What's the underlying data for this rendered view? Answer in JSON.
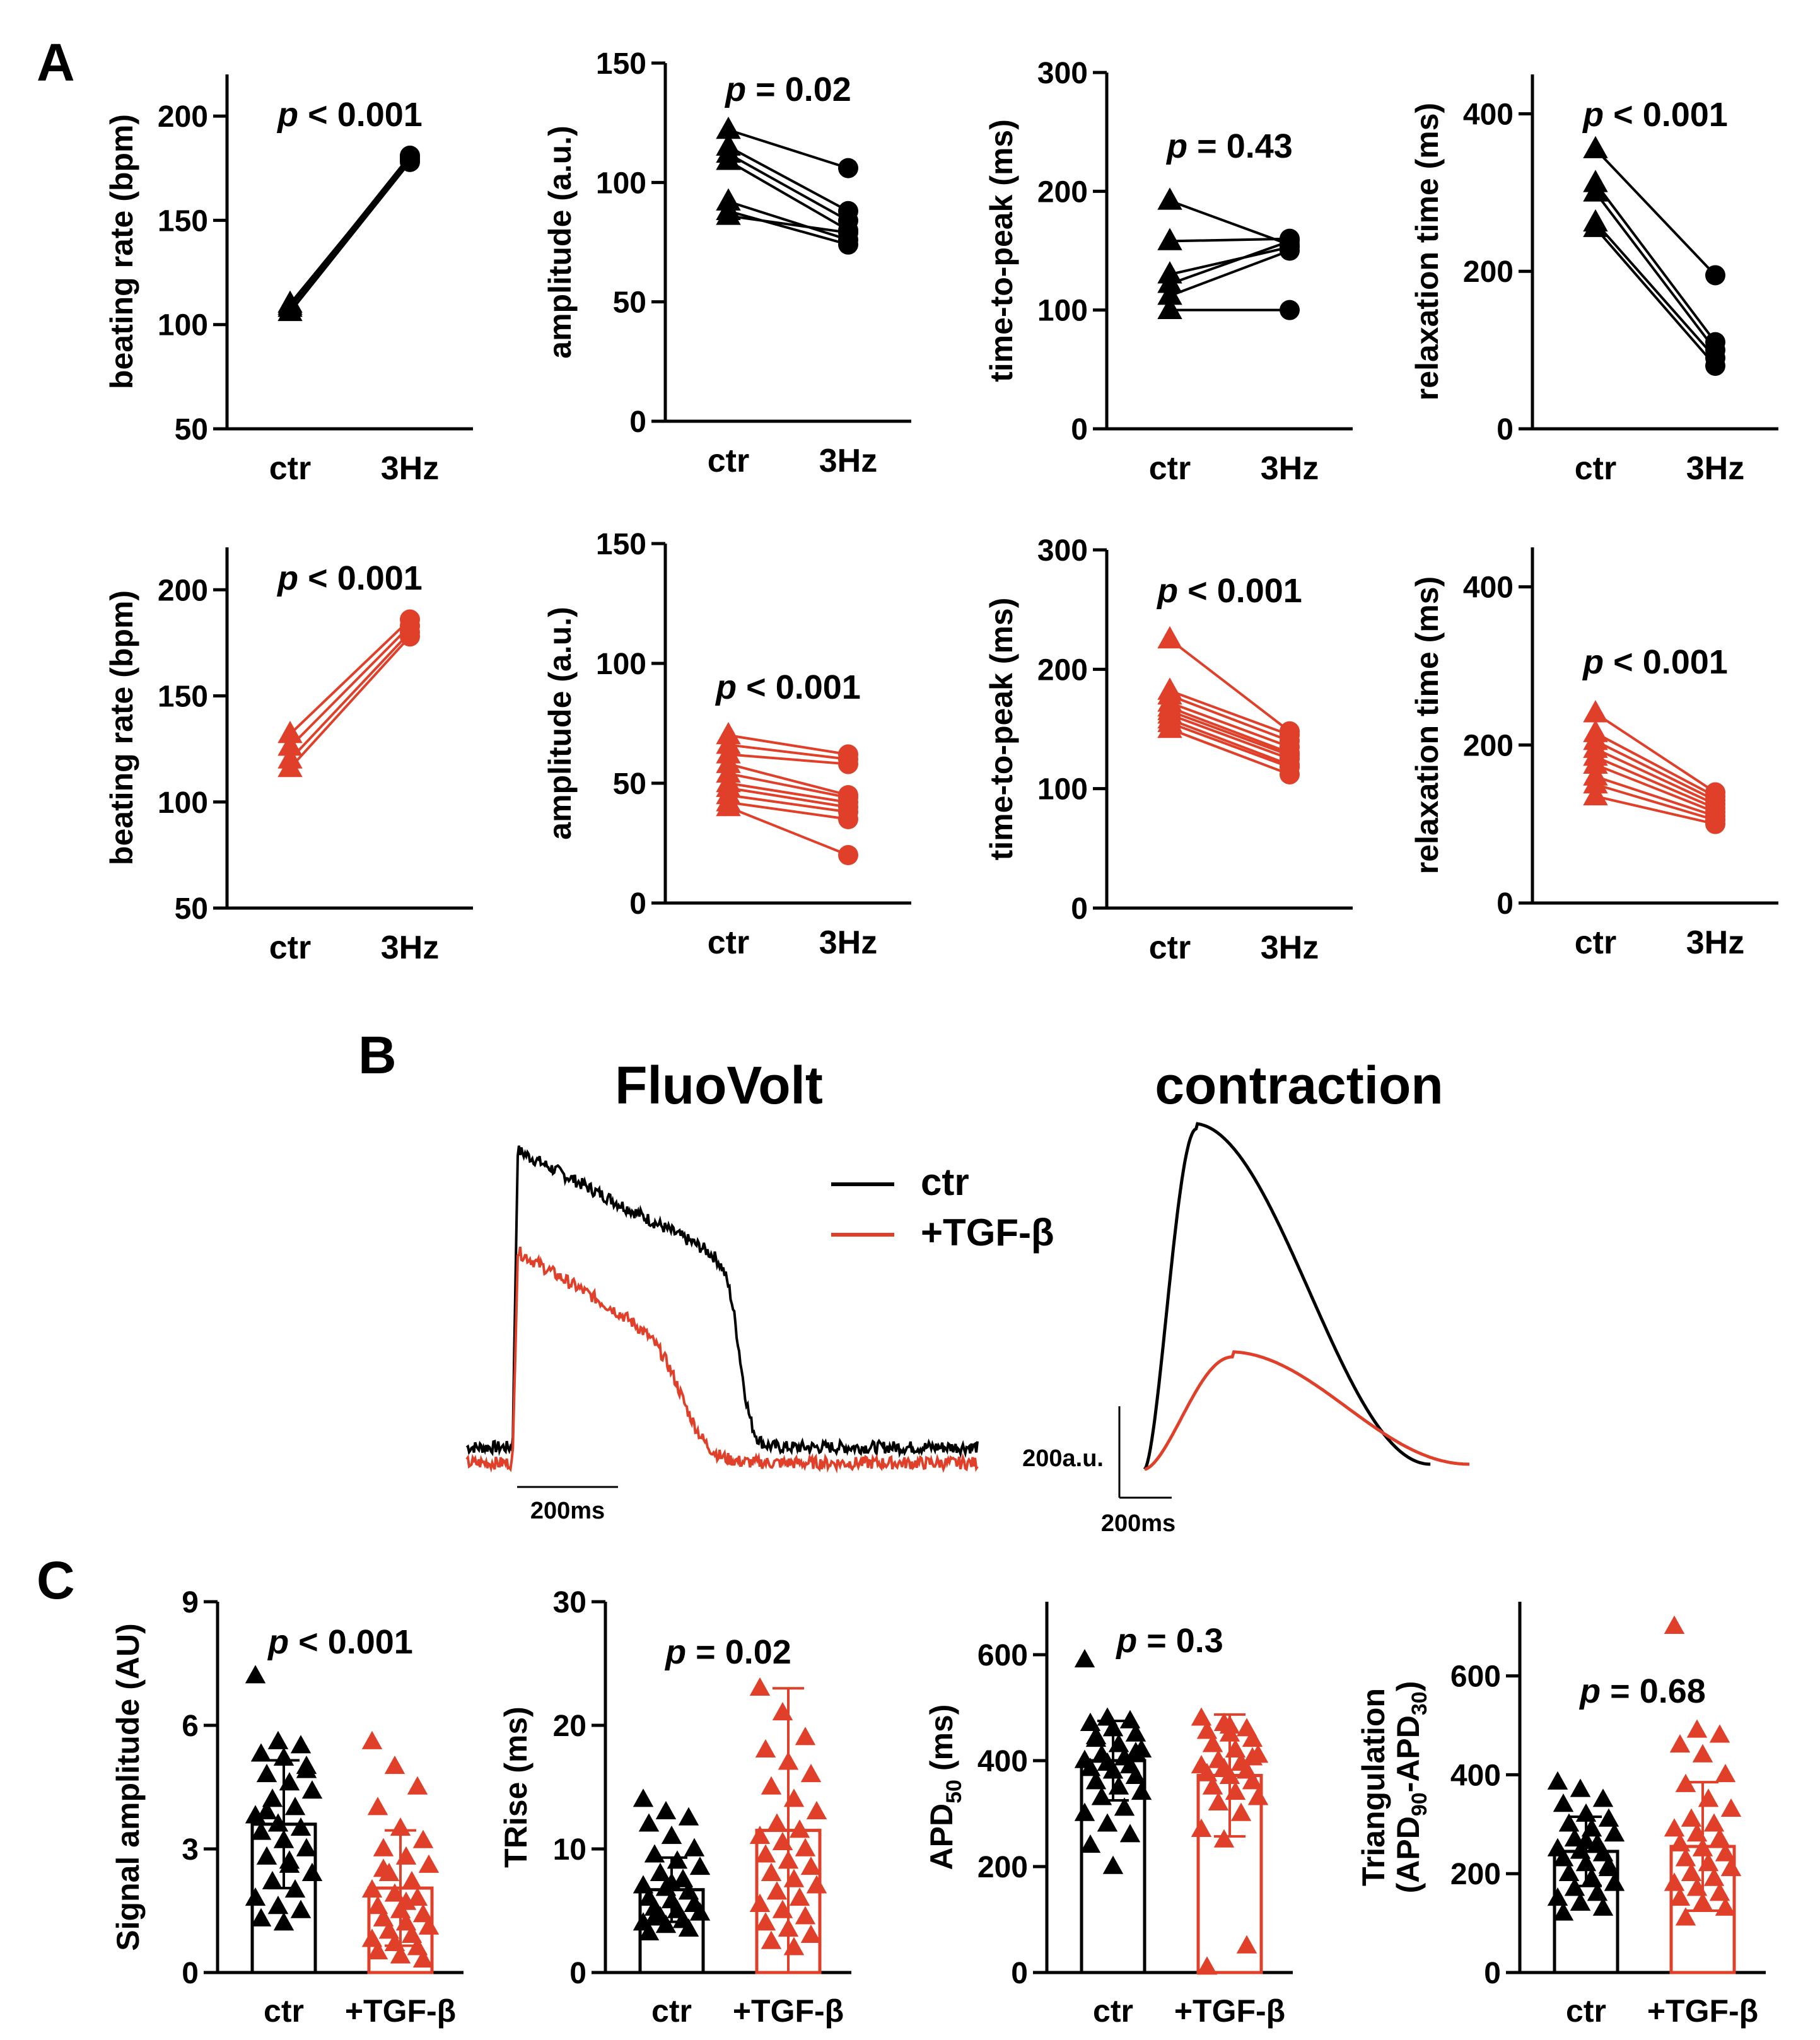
{
  "figure": {
    "panel_labels": [
      "A",
      "B",
      "C"
    ],
    "colors": {
      "control": "#000000",
      "treated": "#e0402a"
    }
  },
  "chart_data": [
    {
      "id": "A1",
      "type": "scatter",
      "paired": true,
      "color": "#000000",
      "marker_ctr": "triangle",
      "marker_3hz": "circle",
      "ylabel": "beating rate (bpm)",
      "ylim": [
        50,
        220
      ],
      "yticks": [
        50,
        100,
        150,
        200
      ],
      "categories": [
        "ctr",
        "3Hz"
      ],
      "pvalue": "< 0.001",
      "pairs": [
        [
          108,
          179
        ],
        [
          110,
          180
        ],
        [
          106,
          178
        ],
        [
          109,
          181
        ]
      ]
    },
    {
      "id": "A2",
      "type": "scatter",
      "paired": true,
      "color": "#000000",
      "marker_ctr": "triangle",
      "marker_3hz": "circle",
      "ylabel": "amplitude (a.u.)",
      "ylim": [
        0,
        150
      ],
      "yticks": [
        0,
        50,
        100,
        150
      ],
      "categories": [
        "ctr",
        "3Hz"
      ],
      "pvalue": "= 0.02",
      "pairs": [
        [
          122,
          106
        ],
        [
          115,
          88
        ],
        [
          112,
          84
        ],
        [
          109,
          80
        ],
        [
          92,
          76
        ],
        [
          88,
          74
        ],
        [
          86,
          79
        ]
      ]
    },
    {
      "id": "A3",
      "type": "scatter",
      "paired": true,
      "color": "#000000",
      "marker_ctr": "triangle",
      "marker_3hz": "circle",
      "ylabel": "time-to-peak (ms)",
      "ylim": [
        0,
        300
      ],
      "yticks": [
        0,
        100,
        200,
        300
      ],
      "categories": [
        "ctr",
        "3Hz"
      ],
      "pvalue": "= 0.43",
      "pairs": [
        [
          192,
          155
        ],
        [
          158,
          160
        ],
        [
          130,
          153
        ],
        [
          122,
          158
        ],
        [
          112,
          150
        ],
        [
          100,
          100
        ]
      ]
    },
    {
      "id": "A4",
      "type": "scatter",
      "paired": true,
      "color": "#000000",
      "marker_ctr": "triangle",
      "marker_3hz": "circle",
      "ylabel": "relaxation time (ms)",
      "ylim": [
        0,
        450
      ],
      "yticks": [
        0,
        200,
        400
      ],
      "categories": [
        "ctr",
        "3Hz"
      ],
      "pvalue": "< 0.001",
      "pairs": [
        [
          355,
          195
        ],
        [
          312,
          110
        ],
        [
          300,
          100
        ],
        [
          262,
          90
        ],
        [
          255,
          80
        ]
      ]
    },
    {
      "id": "A5",
      "type": "scatter",
      "paired": true,
      "color": "#e0402a",
      "marker_ctr": "triangle",
      "marker_3hz": "circle",
      "ylabel": "beating rate (bpm)",
      "ylim": [
        50,
        220
      ],
      "yticks": [
        50,
        100,
        150,
        200
      ],
      "categories": [
        "ctr",
        "3Hz"
      ],
      "pvalue": "< 0.001",
      "pairs": [
        [
          132,
          186
        ],
        [
          126,
          183
        ],
        [
          120,
          180
        ],
        [
          116,
          178
        ]
      ]
    },
    {
      "id": "A6",
      "type": "scatter",
      "paired": true,
      "color": "#e0402a",
      "marker_ctr": "triangle",
      "marker_3hz": "circle",
      "ylabel": "amplitude (a.u.)",
      "ylim": [
        0,
        150
      ],
      "yticks": [
        0,
        50,
        100,
        150
      ],
      "categories": [
        "ctr",
        "3Hz"
      ],
      "pvalue": "< 0.001",
      "pairs": [
        [
          70,
          62
        ],
        [
          66,
          60
        ],
        [
          62,
          58
        ],
        [
          58,
          45
        ],
        [
          54,
          44
        ],
        [
          50,
          42
        ],
        [
          48,
          40
        ],
        [
          45,
          38
        ],
        [
          42,
          35
        ],
        [
          40,
          20
        ]
      ]
    },
    {
      "id": "A7",
      "type": "scatter",
      "paired": true,
      "color": "#e0402a",
      "marker_ctr": "triangle",
      "marker_3hz": "circle",
      "ylabel": "time-to-peak (ms)",
      "ylim": [
        0,
        300
      ],
      "yticks": [
        0,
        100,
        200,
        300
      ],
      "categories": [
        "ctr",
        "3Hz"
      ],
      "pvalue": "< 0.001",
      "pairs": [
        [
          225,
          148
        ],
        [
          182,
          145
        ],
        [
          178,
          140
        ],
        [
          172,
          135
        ],
        [
          168,
          130
        ],
        [
          165,
          128
        ],
        [
          162,
          125
        ],
        [
          158,
          120
        ],
        [
          155,
          118
        ],
        [
          150,
          112
        ]
      ]
    },
    {
      "id": "A8",
      "type": "scatter",
      "paired": true,
      "color": "#e0402a",
      "marker_ctr": "triangle",
      "marker_3hz": "circle",
      "ylabel": "relaxation time (ms)",
      "ylim": [
        0,
        450
      ],
      "yticks": [
        0,
        200,
        400
      ],
      "categories": [
        "ctr",
        "3Hz"
      ],
      "pvalue": "< 0.001",
      "pairs": [
        [
          240,
          140
        ],
        [
          215,
          135
        ],
        [
          205,
          130
        ],
        [
          195,
          125
        ],
        [
          185,
          120
        ],
        [
          175,
          115
        ],
        [
          160,
          110
        ],
        [
          150,
          105
        ],
        [
          135,
          100
        ]
      ]
    },
    {
      "id": "B1",
      "type": "line",
      "title": "FluoVolt",
      "series": [
        {
          "name": "ctr",
          "color": "#000000",
          "baseline": 0.05,
          "peak": 1.0,
          "plateau_end": 0.62,
          "onset": 0.09,
          "repol_mid": 0.535,
          "repol_width": 0.012,
          "noise": 0.02
        },
        {
          "name": "+TGF-β",
          "color": "#e0402a",
          "baseline": 0.0,
          "peak": 0.68,
          "plateau_end": 0.35,
          "onset": 0.09,
          "repol_mid": 0.43,
          "repol_width": 0.025,
          "noise": 0.02
        }
      ],
      "scalebar_x": "200ms"
    },
    {
      "id": "B2",
      "type": "line",
      "title": "contraction",
      "series": [
        {
          "name": "ctr",
          "color": "#000000",
          "peak": 1.0,
          "t_peak": 0.16,
          "t_end": 0.88
        },
        {
          "name": "+TGF-β",
          "color": "#e0402a",
          "peak": 0.33,
          "t_peak": 0.27,
          "t_end": 1.0
        }
      ],
      "scalebar_x": "200ms",
      "scalebar_y": "200a.u."
    },
    {
      "id": "C1",
      "type": "bar",
      "ylabel": "Signal amplitude (AU)",
      "ylim": [
        0,
        9
      ],
      "yticks": [
        0,
        3,
        6,
        9
      ],
      "categories": [
        "ctr",
        "+TGF-β"
      ],
      "pvalue": "< 0.001",
      "means": [
        3.6,
        2.05
      ],
      "sd": [
        1.55,
        1.4
      ],
      "points": [
        [
          7.2,
          5.6,
          5.5,
          5.3,
          5.2,
          5.0,
          4.8,
          4.6,
          4.4,
          4.2,
          4.0,
          3.8,
          3.6,
          3.5,
          3.4,
          3.2,
          3.0,
          2.8,
          2.6,
          2.4,
          2.2,
          2.0,
          1.8,
          1.6,
          1.5,
          1.3,
          1.2,
          4.9,
          3.9,
          2.7
        ],
        [
          5.6,
          5.0,
          4.5,
          4.0,
          3.5,
          3.2,
          3.0,
          2.8,
          2.6,
          2.4,
          2.2,
          2.0,
          1.9,
          1.8,
          1.6,
          1.5,
          1.4,
          1.3,
          1.2,
          1.1,
          1.0,
          0.9,
          0.8,
          0.7,
          0.6,
          0.5,
          0.4,
          0.3,
          2.5,
          1.7
        ]
      ]
    },
    {
      "id": "C2",
      "type": "bar",
      "ylabel": "TRise (ms)",
      "ylim": [
        0,
        30
      ],
      "yticks": [
        0,
        10,
        20,
        30
      ],
      "categories": [
        "ctr",
        "+TGF-β"
      ],
      "pvalue": "= 0.02",
      "means": [
        6.7,
        11.5
      ],
      "sd": [
        2.6,
        11.5
      ],
      "points": [
        [
          14.0,
          13.0,
          12.5,
          12.0,
          11.0,
          10.0,
          9.5,
          9.0,
          8.5,
          8.0,
          7.5,
          7.0,
          6.8,
          6.5,
          6.0,
          5.8,
          5.5,
          5.2,
          5.0,
          4.8,
          4.5,
          4.2,
          4.0,
          3.8,
          3.5,
          3.2,
          7.2,
          5.5,
          4.4
        ],
        [
          23.0,
          21.0,
          19.0,
          18.0,
          17.0,
          16.0,
          15.0,
          14.0,
          13.0,
          12.0,
          11.5,
          11.0,
          10.5,
          10.0,
          9.5,
          9.0,
          8.5,
          8.0,
          7.5,
          7.0,
          6.5,
          6.0,
          5.5,
          5.0,
          4.5,
          4.0,
          3.5,
          3.0,
          2.5,
          2.0
        ]
      ]
    },
    {
      "id": "C3",
      "type": "bar",
      "ylabel": "APD50 (ms)",
      "ylabel_main": "APD",
      "ylabel_sub": "50",
      "ylabel_suffix": " (ms)",
      "ylim": [
        0,
        700
      ],
      "yticks": [
        0,
        200,
        400,
        600
      ],
      "categories": [
        "ctr",
        "+TGF-β"
      ],
      "pvalue": "= 0.3",
      "means": [
        400,
        372
      ],
      "sd": [
        75,
        115
      ],
      "points": [
        [
          590,
          480,
          475,
          470,
          460,
          450,
          440,
          430,
          420,
          410,
          405,
          400,
          395,
          390,
          385,
          380,
          370,
          360,
          350,
          340,
          330,
          310,
          300,
          280,
          260,
          240,
          200,
          415,
          445
        ],
        [
          480,
          470,
          460,
          455,
          450,
          440,
          430,
          420,
          410,
          400,
          395,
          390,
          385,
          380,
          375,
          370,
          360,
          350,
          340,
          330,
          320,
          300,
          270,
          250,
          50,
          10,
          465,
          405
        ]
      ]
    },
    {
      "id": "C4",
      "type": "bar",
      "ylabel": "Triangulation (APD90-APD30)",
      "ylabel_line1": "Triangulation",
      "ylim": [
        0,
        750
      ],
      "yticks": [
        0,
        200,
        400,
        600
      ],
      "categories": [
        "ctr",
        "+TGF-β"
      ],
      "pvalue": "= 0.68",
      "means": [
        245,
        255
      ],
      "sd": [
        70,
        130
      ],
      "points": [
        [
          385,
          370,
          350,
          340,
          320,
          310,
          300,
          290,
          280,
          270,
          260,
          250,
          245,
          240,
          230,
          220,
          210,
          200,
          190,
          180,
          170,
          160,
          150,
          140,
          130,
          120,
          265,
          215
        ],
        [
          700,
          490,
          480,
          460,
          440,
          400,
          380,
          350,
          330,
          310,
          300,
          290,
          280,
          270,
          260,
          250,
          240,
          230,
          220,
          210,
          200,
          190,
          180,
          170,
          160,
          150,
          140,
          130,
          110
        ]
      ]
    }
  ]
}
